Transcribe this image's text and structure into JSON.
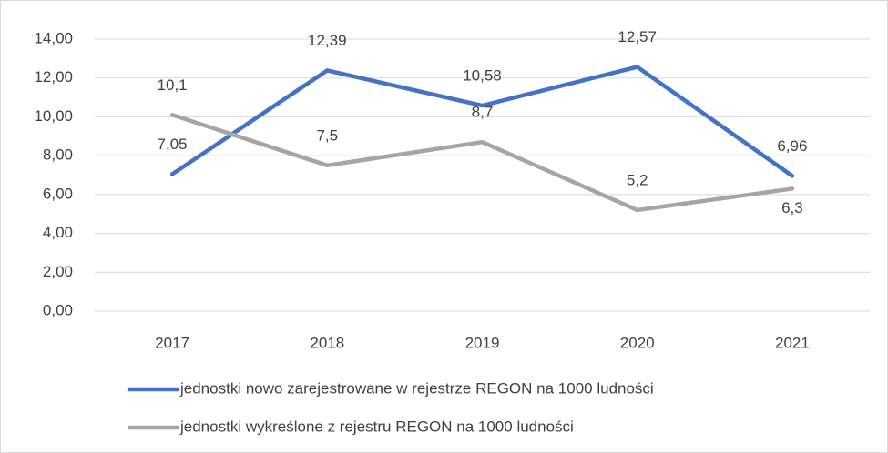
{
  "chart_data": {
    "type": "line",
    "categories": [
      "2017",
      "2018",
      "2019",
      "2020",
      "2021"
    ],
    "series": [
      {
        "name": "jednostki nowo zarejestrowane w rejestrze REGON na 1000 ludności",
        "color": "#4472c4",
        "values": [
          7.05,
          12.39,
          10.58,
          12.57,
          6.96
        ],
        "value_labels": [
          "7,05",
          "12,39",
          "10,58",
          "12,57",
          "6,96"
        ]
      },
      {
        "name": "jednostki wykreślone z rejestru REGON na 1000 ludności",
        "color": "#a5a5a5",
        "values": [
          10.1,
          7.5,
          8.7,
          5.2,
          6.3
        ],
        "value_labels": [
          "10,1",
          "7,5",
          "8,7",
          "5,2",
          "6,3"
        ]
      }
    ],
    "ylim": [
      0,
      14
    ],
    "yticks": [
      {
        "value": 0,
        "label": "0,00"
      },
      {
        "value": 2,
        "label": "2,00"
      },
      {
        "value": 4,
        "label": "4,00"
      },
      {
        "value": 6,
        "label": "6,00"
      },
      {
        "value": 8,
        "label": "8,00"
      },
      {
        "value": 10,
        "label": "10,00"
      },
      {
        "value": 12,
        "label": "12,00"
      },
      {
        "value": 14,
        "label": "14,00"
      }
    ],
    "grid": true,
    "legend": "bottom"
  }
}
